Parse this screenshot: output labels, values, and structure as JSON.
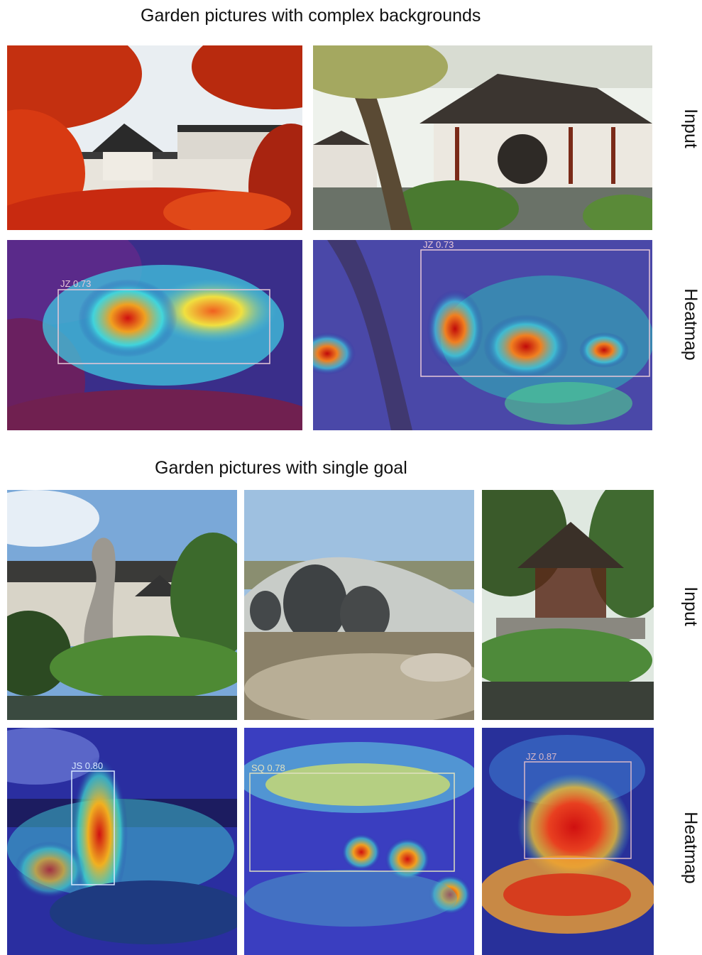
{
  "sections": [
    {
      "title": "Garden pictures with complex backgrounds",
      "row_labels": [
        "Input",
        "Heatmap"
      ],
      "panels": [
        {
          "scene": "red maple pavilion courtyard",
          "row": "Input"
        },
        {
          "scene": "pavilion with moon gate",
          "row": "Input"
        },
        {
          "scene": "red maple pavilion courtyard",
          "row": "Heatmap",
          "detection": {
            "label": "JZ 0.73"
          }
        },
        {
          "scene": "pavilion with moon gate",
          "row": "Heatmap",
          "detection": {
            "label": "JZ 0.73"
          }
        }
      ]
    },
    {
      "title": "Garden pictures with single goal",
      "row_labels": [
        "Input",
        "Heatmap"
      ],
      "panels": [
        {
          "scene": "taihu rockery and pavilion",
          "row": "Input"
        },
        {
          "scene": "stone arch bridge",
          "row": "Input"
        },
        {
          "scene": "pavilion above lotus pond",
          "row": "Input"
        },
        {
          "scene": "taihu rockery and pavilion",
          "row": "Heatmap",
          "detection": {
            "label": "JS 0.80"
          }
        },
        {
          "scene": "stone arch bridge",
          "row": "Heatmap",
          "detection": {
            "label": "SQ 0.78"
          }
        },
        {
          "scene": "pavilion above lotus pond",
          "row": "Heatmap",
          "detection": {
            "label": "JZ 0.87"
          }
        }
      ]
    }
  ],
  "colors": {
    "detection_box": "#e8c8d8",
    "heat_hot": "#d01010",
    "heat_cold": "#2020a0"
  }
}
